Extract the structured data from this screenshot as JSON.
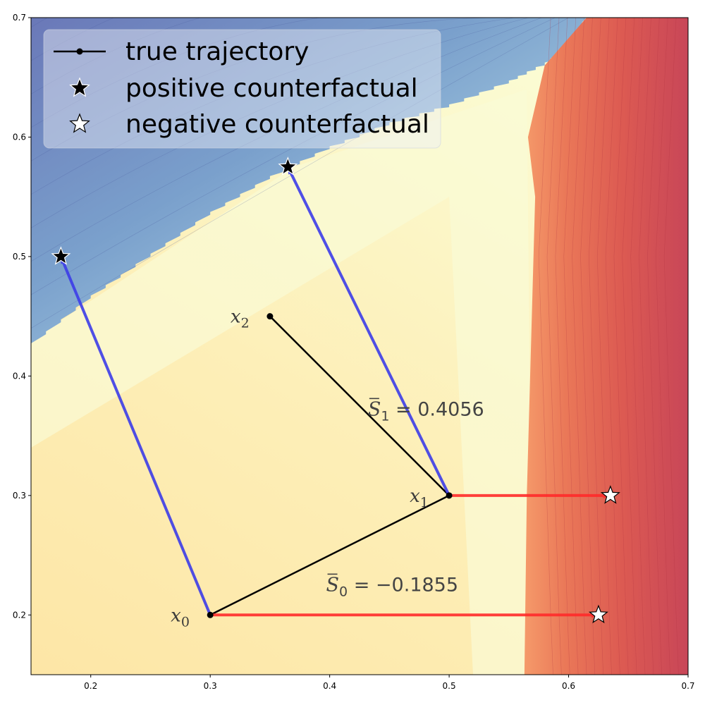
{
  "chart_data": {
    "type": "scatter",
    "title": "",
    "xlabel": "",
    "ylabel": "",
    "xlim": [
      0.15,
      0.7
    ],
    "ylim": [
      0.15,
      0.7
    ],
    "x_ticks": [
      "0.2",
      "0.3",
      "0.4",
      "0.5",
      "0.6",
      "0.7"
    ],
    "y_ticks": [
      "0.2",
      "0.3",
      "0.4",
      "0.5",
      "0.6",
      "0.7"
    ],
    "legend": {
      "placement": "upper-left",
      "entries": [
        {
          "label": "true trajectory",
          "marker": "line-dot",
          "color": "#000000"
        },
        {
          "label": "positive counterfactual",
          "marker": "star",
          "color": "#000000"
        },
        {
          "label": "negative counterfactual",
          "marker": "star",
          "color": "#ffffff"
        }
      ]
    },
    "trajectory": [
      {
        "label": "x",
        "sub": "0",
        "x": 0.3,
        "y": 0.2
      },
      {
        "label": "x",
        "sub": "1",
        "x": 0.5,
        "y": 0.3
      },
      {
        "label": "x",
        "sub": "2",
        "x": 0.35,
        "y": 0.45
      }
    ],
    "positive_counterfactuals": [
      {
        "from": 0,
        "x": 0.175,
        "y": 0.5
      },
      {
        "from": 1,
        "x": 0.365,
        "y": 0.575
      }
    ],
    "negative_counterfactuals": [
      {
        "from": 0,
        "x": 0.625,
        "y": 0.2
      },
      {
        "from": 1,
        "x": 0.635,
        "y": 0.3
      }
    ],
    "annotations": [
      {
        "base": "S",
        "sub": "0",
        "rest": " = −0.1855",
        "x": 0.397,
        "y": 0.22
      },
      {
        "base": "S",
        "sub": "1",
        "rest": " = 0.4056",
        "x": 0.432,
        "y": 0.367
      }
    ],
    "colors": {
      "trajectory": "#000000",
      "positive_arrow": "#3c3ce8",
      "negative_arrow": "#ff2a2a"
    },
    "background": "contour field: blue (upper-left) through pale yellow to red (right)"
  }
}
